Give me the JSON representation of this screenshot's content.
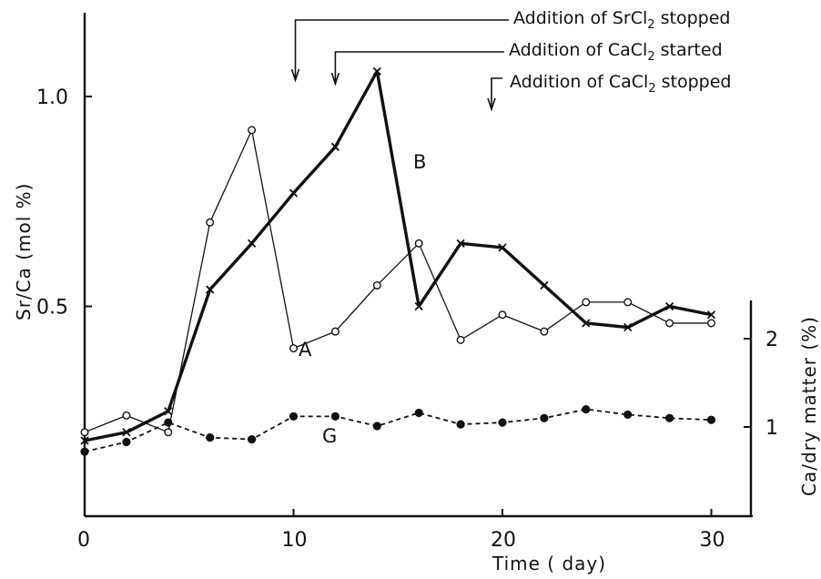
{
  "chart_data": {
    "type": "line",
    "xlabel": "Time ( day)",
    "ylabel": "Sr/Ca (mol %)",
    "y2label": "Ca/dry matter (%)",
    "xlim": [
      0,
      32
    ],
    "ylim": [
      0,
      1.2
    ],
    "y2lim": [
      0,
      2.5
    ],
    "x_ticks": [
      0,
      10,
      20,
      30
    ],
    "x_tick_labels": [
      "0",
      "10",
      "20",
      "30"
    ],
    "y_ticks": [
      0.5,
      1.0
    ],
    "y_tick_labels": [
      "0.5",
      "1.0"
    ],
    "y2_ticks": [
      1,
      2
    ],
    "y2_tick_labels": [
      "1",
      "2"
    ],
    "series": [
      {
        "name": "A",
        "axis": "left",
        "marker": "open-circle",
        "line": "thin",
        "x": [
          0,
          2,
          4,
          6,
          8,
          10,
          12,
          14,
          16,
          18,
          20,
          22,
          24,
          26,
          28,
          30
        ],
        "values": [
          0.2,
          0.24,
          0.2,
          0.7,
          0.92,
          0.4,
          0.44,
          0.55,
          0.65,
          0.42,
          0.48,
          0.44,
          0.51,
          0.51,
          0.46,
          0.46
        ]
      },
      {
        "name": "B",
        "axis": "left",
        "marker": "cross",
        "line": "thick",
        "x": [
          0,
          2,
          4,
          6,
          8,
          10,
          12,
          14,
          16,
          18,
          20,
          22,
          24,
          26,
          28,
          30
        ],
        "values": [
          0.18,
          0.2,
          0.25,
          0.54,
          0.65,
          0.77,
          0.88,
          1.06,
          0.5,
          0.65,
          0.64,
          0.55,
          0.46,
          0.45,
          0.5,
          0.48
        ]
      },
      {
        "name": "G",
        "axis": "right",
        "marker": "filled-circle",
        "line": "dashed",
        "x": [
          0,
          2,
          4,
          6,
          8,
          10,
          12,
          14,
          16,
          18,
          20,
          22,
          24,
          26,
          28,
          30
        ],
        "values": [
          0.72,
          0.83,
          1.05,
          0.88,
          0.86,
          1.12,
          1.12,
          1.01,
          1.16,
          1.03,
          1.05,
          1.1,
          1.2,
          1.14,
          1.1,
          1.08
        ]
      }
    ],
    "annotations": [
      {
        "prefix": "Addition of SrCl",
        "sub": "2",
        "suffix": " stopped",
        "day": 10
      },
      {
        "prefix": "Addition of CaCl",
        "sub": "2",
        "suffix": " started",
        "day": 12
      },
      {
        "prefix": "Addition of CaCl",
        "sub": "2",
        "suffix": " stopped",
        "day": 20
      }
    ]
  }
}
